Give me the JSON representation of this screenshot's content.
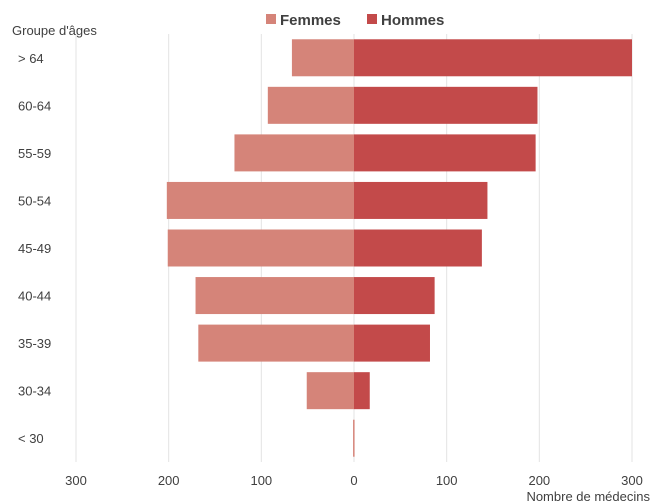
{
  "chart_data": {
    "type": "bar",
    "orientation": "horizontal",
    "layout": "population-pyramid",
    "title": "",
    "ylabel": "Groupe d'âges",
    "xlabel": "Nombre de médecins",
    "categories": [
      "< 30",
      "30-34",
      "35-39",
      "40-44",
      "45-49",
      "50-54",
      "55-59",
      "60-64",
      "> 64"
    ],
    "series": [
      {
        "name": "Femmes",
        "side": "left",
        "color": "#d58479",
        "values": [
          1,
          51,
          168,
          171,
          201,
          202,
          129,
          93,
          67
        ]
      },
      {
        "name": "Hommes",
        "side": "right",
        "color": "#c34a4a",
        "values": [
          0,
          17,
          82,
          87,
          138,
          144,
          196,
          198,
          300
        ]
      }
    ],
    "xlim": [
      -300,
      300
    ],
    "xticks": [
      -300,
      -200,
      -100,
      0,
      100,
      200,
      300
    ],
    "xtick_labels": [
      "300",
      "200",
      "100",
      "0",
      "100",
      "200",
      "300"
    ],
    "grid": "vertical",
    "legend_position": "top-center"
  }
}
